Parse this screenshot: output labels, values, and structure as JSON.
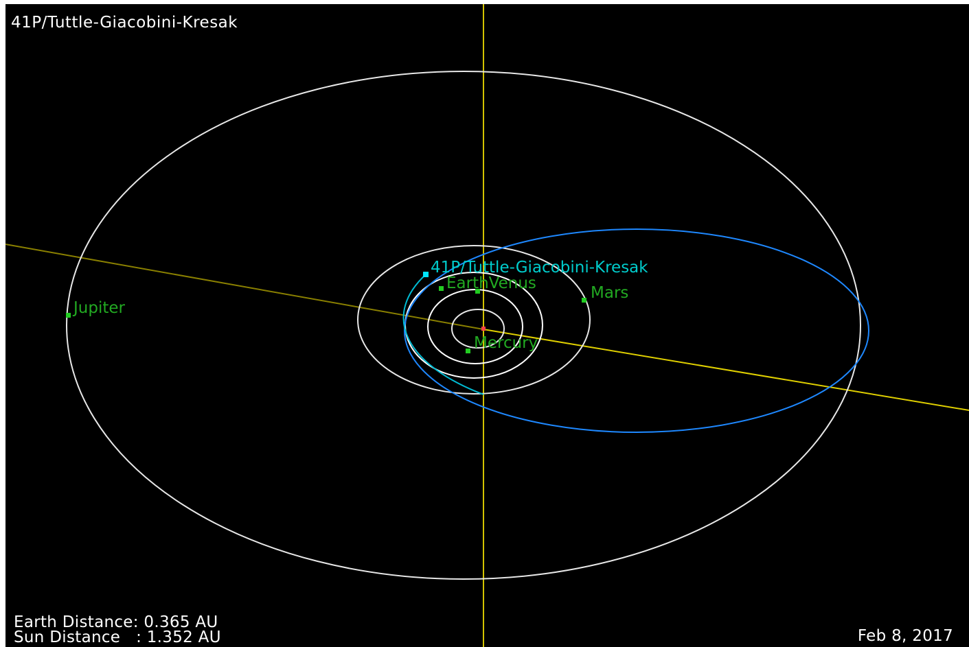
{
  "object_name": "41P/Tuttle-Giacobini-Kresak",
  "readouts": {
    "earth_distance": "Earth Distance: 0.365 AU",
    "sun_distance": "Sun Distance   : 1.352 AU"
  },
  "date": "Feb 8, 2017",
  "bodies": {
    "jupiter": "Jupiter",
    "mars": "Mars",
    "earth_venus": "EarthVenus",
    "mercury": "Mercury",
    "comet": "41P/Tuttle-Giacobini-Kresak"
  },
  "colors": {
    "background": "#000000",
    "planet_orbit": "#ffffff",
    "comet_orbit": "#00bcd4",
    "comet_orbit_far": "#1e88ff",
    "planet_marker": "#22cc22",
    "planet_label": "#22aa22",
    "comet_label": "#00cccc",
    "sun": "#ff4444",
    "ecliptic_axis": "#d4c400"
  }
}
